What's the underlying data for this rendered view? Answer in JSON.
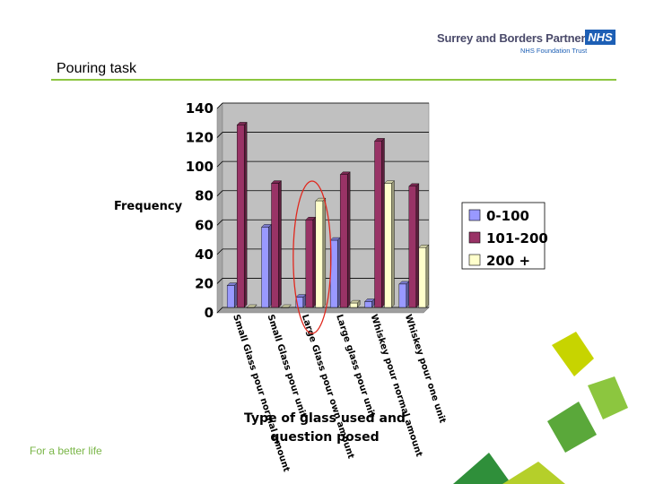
{
  "header": {
    "org_name": "Surrey and Borders Partnership",
    "nhs_badge": "NHS",
    "org_sub": "NHS Foundation Trust"
  },
  "slide": {
    "title": "Pouring task",
    "footer": "For a better life"
  },
  "colors": {
    "accent": "#8cc63f",
    "nhs_blue": "#1d5fb5",
    "plot_bg": "#c0c0c0",
    "highlight_ellipse": "#e0281e"
  },
  "chart_data": {
    "type": "bar",
    "categories": [
      "Small Glass pour normal amount",
      "Small Glass pour unit",
      "Large Glass pour own amount",
      "Large glass pour unit",
      "Whiskey pour normal amount",
      "Whiskey pour one unit"
    ],
    "series": [
      {
        "name": "0-100",
        "color": "#9999ff",
        "values": [
          15,
          55,
          7,
          46,
          4,
          16
        ]
      },
      {
        "name": "101-200",
        "color": "#993366",
        "values": [
          125,
          85,
          60,
          91,
          114,
          83
        ]
      },
      {
        "name": "200 +",
        "color": "#ffffcc",
        "values": [
          0,
          0,
          73,
          3,
          85,
          41
        ]
      }
    ],
    "ylabel": "Frequency",
    "xlabel": "Type of glass used and question posed",
    "ylim": [
      0,
      140
    ],
    "yticks": [
      0,
      20,
      40,
      60,
      80,
      100,
      120,
      140
    ],
    "grid": true,
    "legend_position": "right",
    "highlighted_category": "Large Glass pour own amount"
  }
}
